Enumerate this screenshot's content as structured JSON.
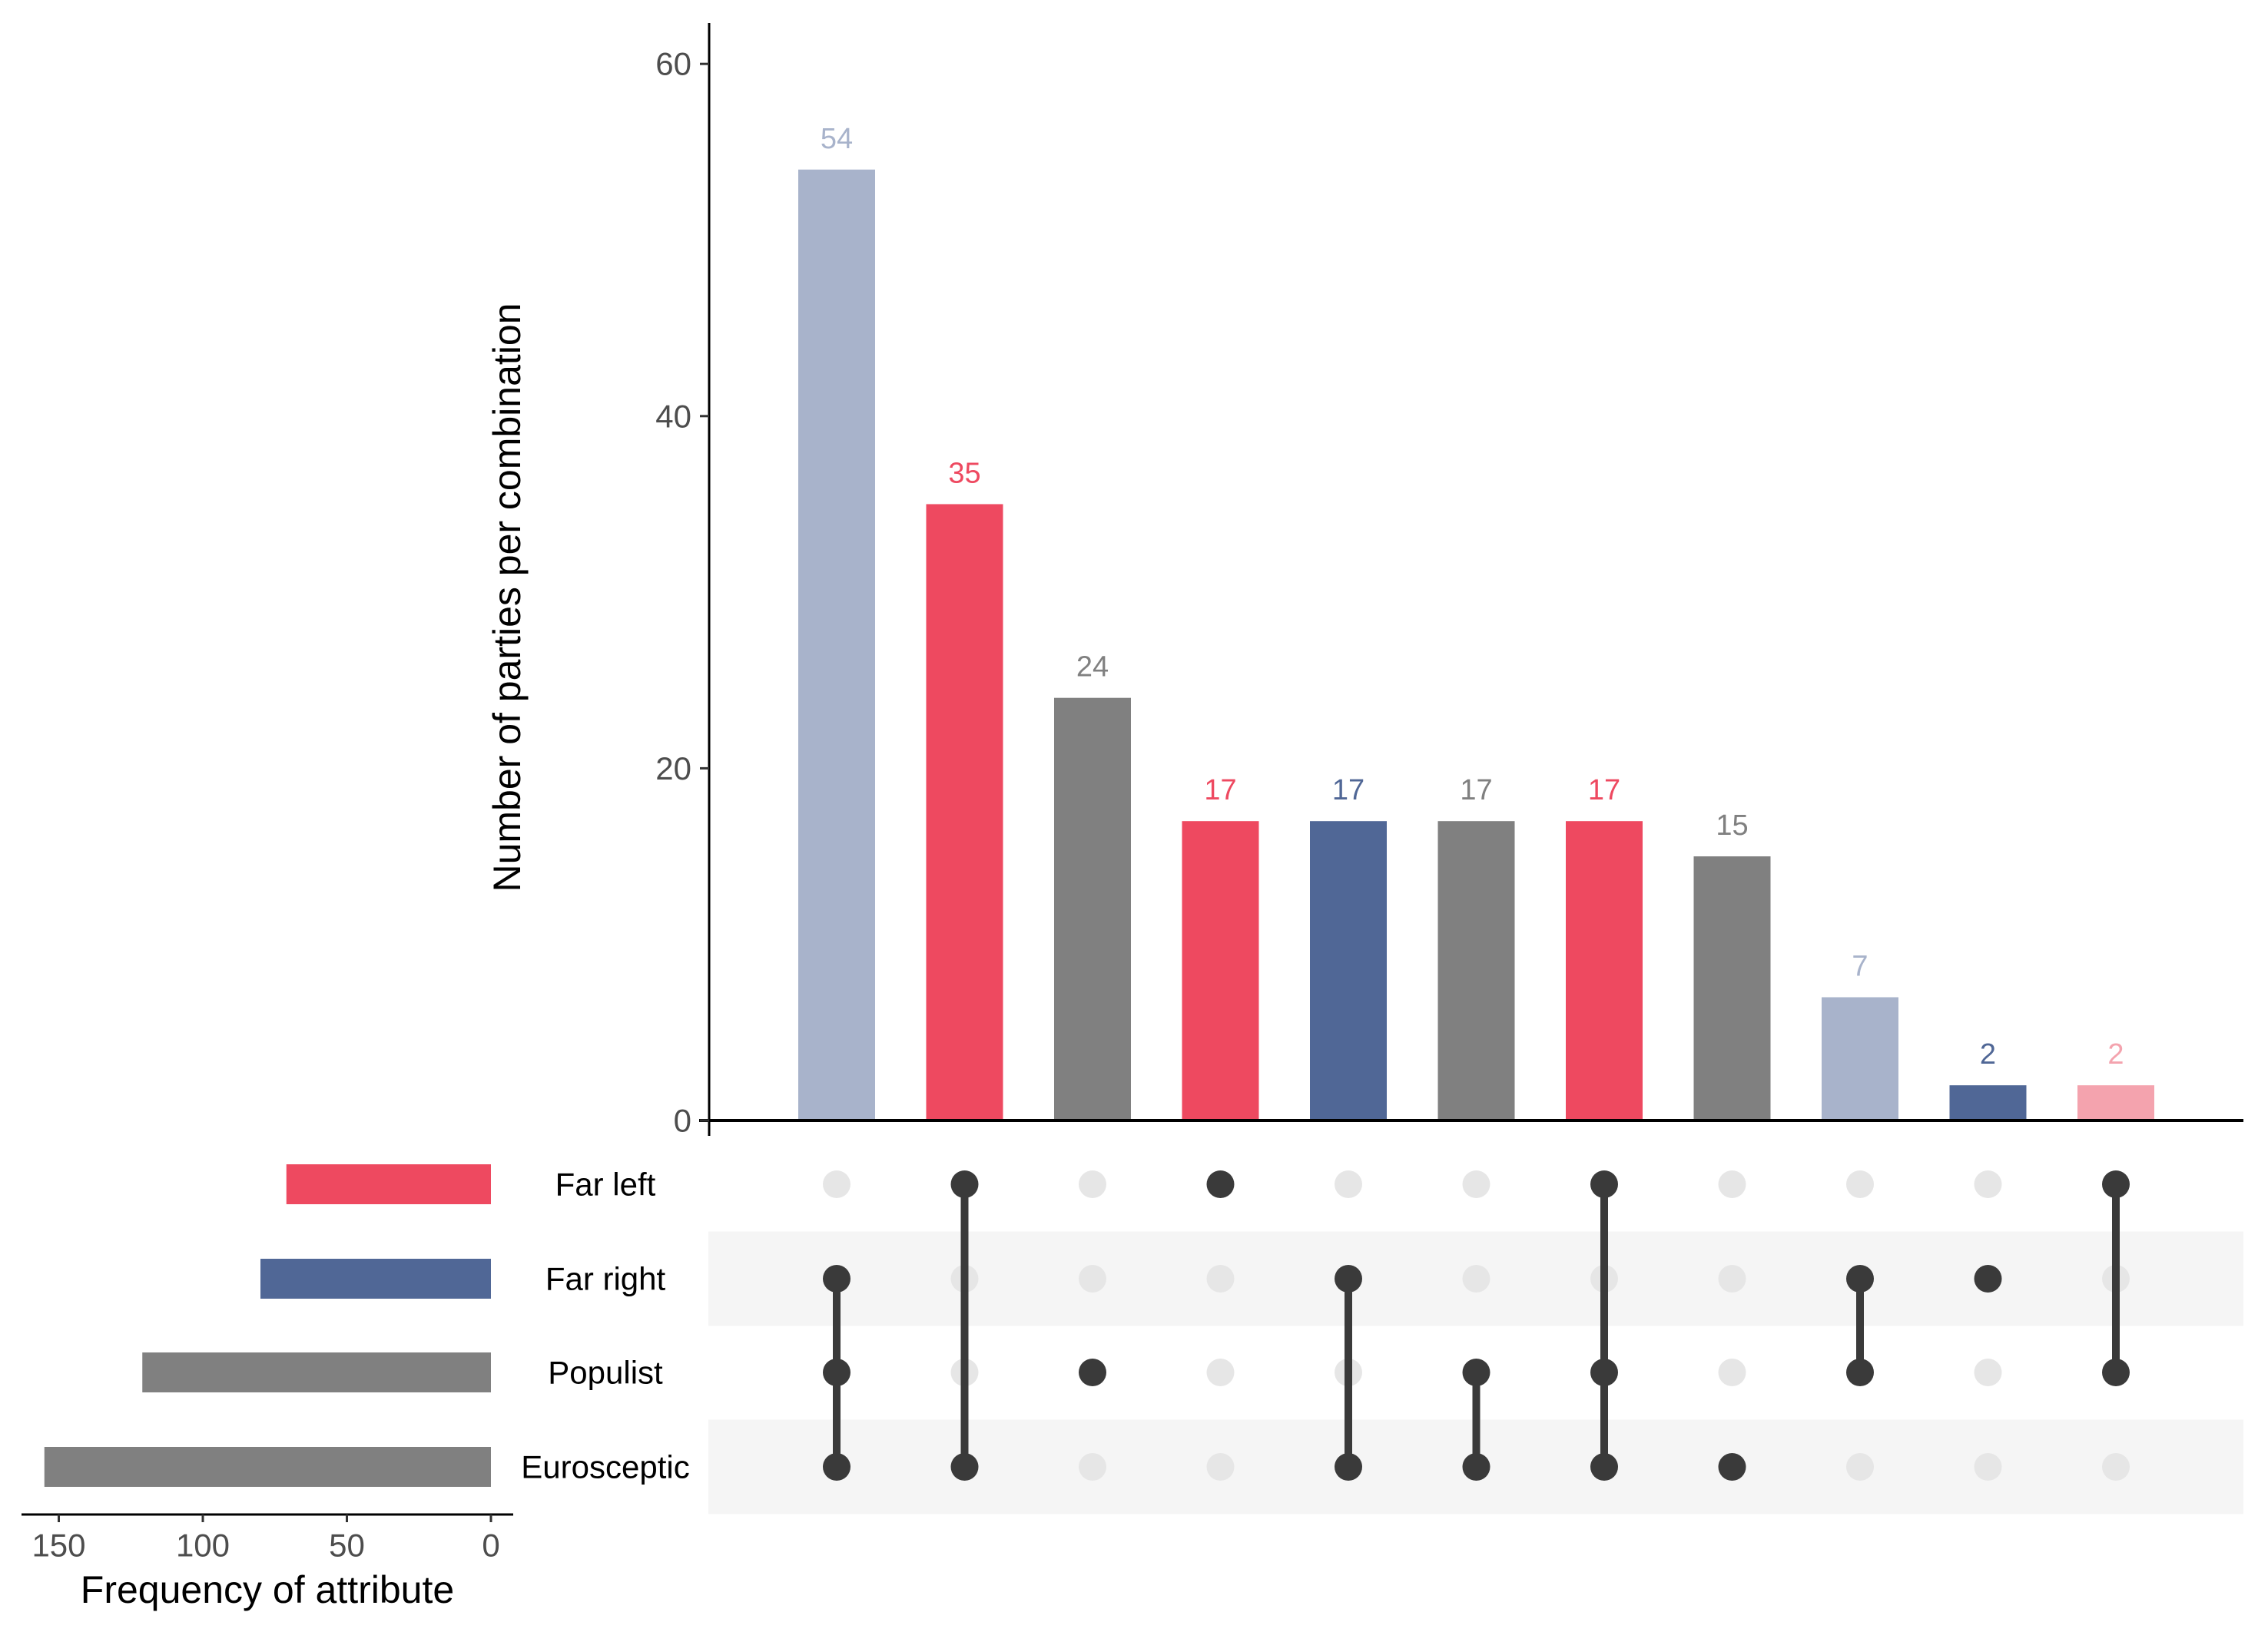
{
  "chart_data": {
    "type": "bar",
    "subtype": "upset",
    "ylabel": "Number of parties per combination",
    "ylim": [
      0,
      62
    ],
    "yticks": [
      "0",
      "20",
      "40",
      "60"
    ],
    "ytick_values": [
      0,
      20,
      40,
      60
    ],
    "grid": false,
    "sets": [
      "Far left",
      "Far right",
      "Populist",
      "Eurosceptic"
    ],
    "set_sizes": {
      "xlabel": "Frequency of attribute",
      "values": [
        71,
        80,
        121,
        155
      ],
      "colors": [
        "#ee4960",
        "#506796",
        "#808080",
        "#808080"
      ],
      "xticks": [
        "150",
        "100",
        "50",
        "0"
      ],
      "xtick_values": [
        150,
        100,
        50,
        0
      ],
      "xlim": [
        0,
        160
      ]
    },
    "combinations": [
      {
        "sets": [
          "Far right",
          "Populist",
          "Eurosceptic"
        ],
        "value": 54,
        "label": "54",
        "color": "#a8b3cb"
      },
      {
        "sets": [
          "Far left",
          "Eurosceptic"
        ],
        "value": 35,
        "label": "35",
        "color": "#ee4960"
      },
      {
        "sets": [
          "Populist"
        ],
        "value": 24,
        "label": "24",
        "color": "#808080"
      },
      {
        "sets": [
          "Far left"
        ],
        "value": 17,
        "label": "17",
        "color": "#ee4960"
      },
      {
        "sets": [
          "Far right",
          "Eurosceptic"
        ],
        "value": 17,
        "label": "17",
        "color": "#506796"
      },
      {
        "sets": [
          "Populist",
          "Eurosceptic"
        ],
        "value": 17,
        "label": "17",
        "color": "#808080"
      },
      {
        "sets": [
          "Far left",
          "Populist",
          "Eurosceptic"
        ],
        "value": 17,
        "label": "17",
        "color": "#ee4960"
      },
      {
        "sets": [
          "Eurosceptic"
        ],
        "value": 15,
        "label": "15",
        "color": "#808080"
      },
      {
        "sets": [
          "Far right",
          "Populist"
        ],
        "value": 7,
        "label": "7",
        "color": "#a8b3cb"
      },
      {
        "sets": [
          "Far right"
        ],
        "value": 2,
        "label": "2",
        "color": "#506796"
      },
      {
        "sets": [
          "Far left",
          "Populist"
        ],
        "value": 2,
        "label": "2",
        "color": "#f4a3ae"
      }
    ],
    "colors": {
      "active_dot": "#3a3a3a",
      "inactive_dot": "#e6e6e6",
      "stripe": "#f5f5f5",
      "axis": "#000000"
    }
  }
}
